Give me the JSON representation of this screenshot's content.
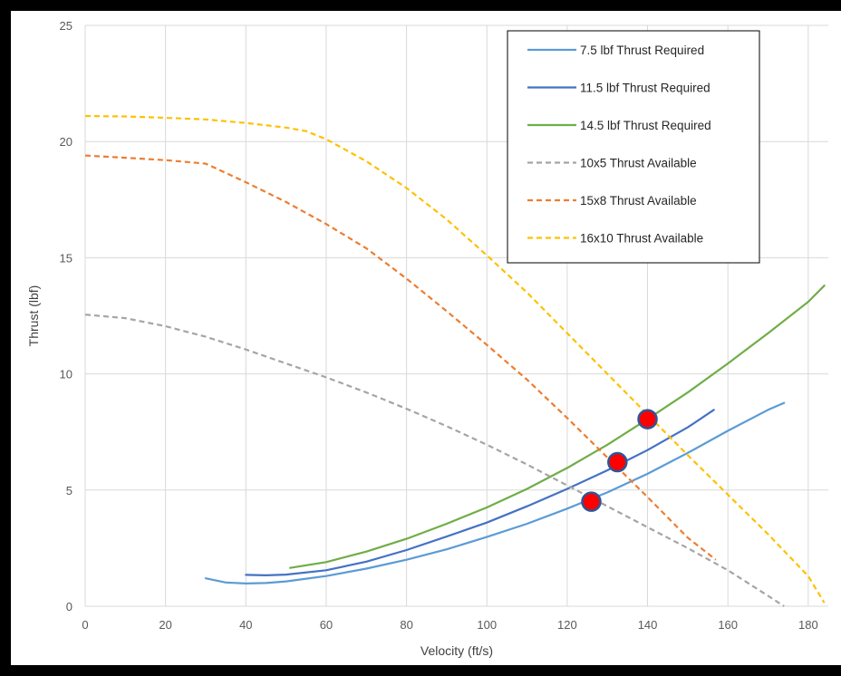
{
  "chart_data": {
    "type": "line",
    "title": "",
    "xlabel": "Velocity (ft/s)",
    "ylabel": "Thrust (lbf)",
    "xlim": [
      0,
      185
    ],
    "ylim": [
      0,
      25
    ],
    "xticks": [
      0,
      20,
      40,
      60,
      80,
      100,
      120,
      140,
      160,
      180
    ],
    "yticks": [
      0,
      5,
      10,
      15,
      20,
      25
    ],
    "grid": true,
    "legend_position": "top-right",
    "series": [
      {
        "name": "7.5 lbf Thrust Required",
        "color": "#5B9BD5",
        "dash": "solid",
        "points": [
          [
            30,
            1.2
          ],
          [
            35,
            1.02
          ],
          [
            40,
            0.98
          ],
          [
            45,
            1.0
          ],
          [
            50,
            1.07
          ],
          [
            60,
            1.3
          ],
          [
            70,
            1.62
          ],
          [
            80,
            2.0
          ],
          [
            90,
            2.45
          ],
          [
            100,
            2.98
          ],
          [
            110,
            3.55
          ],
          [
            120,
            4.2
          ],
          [
            130,
            4.9
          ],
          [
            140,
            5.7
          ],
          [
            150,
            6.6
          ],
          [
            160,
            7.55
          ],
          [
            170,
            8.45
          ],
          [
            174,
            8.75
          ]
        ]
      },
      {
        "name": "11.5 lbf Thrust Required",
        "color": "#4472C4",
        "dash": "solid",
        "points": [
          [
            40,
            1.35
          ],
          [
            45,
            1.33
          ],
          [
            50,
            1.36
          ],
          [
            60,
            1.55
          ],
          [
            70,
            1.92
          ],
          [
            80,
            2.42
          ],
          [
            90,
            3.0
          ],
          [
            100,
            3.6
          ],
          [
            110,
            4.3
          ],
          [
            120,
            5.05
          ],
          [
            130,
            5.85
          ],
          [
            140,
            6.72
          ],
          [
            150,
            7.7
          ],
          [
            156.5,
            8.45
          ]
        ]
      },
      {
        "name": "14.5 lbf Thrust Required",
        "color": "#70AD47",
        "dash": "solid",
        "points": [
          [
            51,
            1.65
          ],
          [
            60,
            1.9
          ],
          [
            70,
            2.35
          ],
          [
            80,
            2.9
          ],
          [
            90,
            3.55
          ],
          [
            100,
            4.25
          ],
          [
            110,
            5.05
          ],
          [
            120,
            5.95
          ],
          [
            130,
            6.95
          ],
          [
            140,
            8.05
          ],
          [
            150,
            9.2
          ],
          [
            160,
            10.45
          ],
          [
            170,
            11.75
          ],
          [
            180,
            13.1
          ],
          [
            184,
            13.8
          ]
        ]
      },
      {
        "name": "10x5 Thrust Available",
        "color": "#A5A5A5",
        "dash": "dashed",
        "points": [
          [
            0,
            12.55
          ],
          [
            10,
            12.4
          ],
          [
            20,
            12.05
          ],
          [
            30,
            11.6
          ],
          [
            40,
            11.05
          ],
          [
            50,
            10.45
          ],
          [
            60,
            9.85
          ],
          [
            70,
            9.2
          ],
          [
            80,
            8.5
          ],
          [
            90,
            7.75
          ],
          [
            100,
            6.95
          ],
          [
            110,
            6.1
          ],
          [
            120,
            5.2
          ],
          [
            130,
            4.3
          ],
          [
            140,
            3.4
          ],
          [
            150,
            2.5
          ],
          [
            160,
            1.55
          ],
          [
            170,
            0.45
          ],
          [
            174,
            0.0
          ]
        ]
      },
      {
        "name": "15x8 Thrust Available",
        "color": "#ED7D31",
        "dash": "dashed",
        "points": [
          [
            0,
            19.4
          ],
          [
            10,
            19.3
          ],
          [
            20,
            19.2
          ],
          [
            30,
            19.05
          ],
          [
            40,
            18.25
          ],
          [
            50,
            17.4
          ],
          [
            60,
            16.45
          ],
          [
            70,
            15.4
          ],
          [
            80,
            14.1
          ],
          [
            90,
            12.7
          ],
          [
            100,
            11.25
          ],
          [
            110,
            9.75
          ],
          [
            120,
            8.1
          ],
          [
            130,
            6.4
          ],
          [
            140,
            4.7
          ],
          [
            150,
            2.95
          ],
          [
            157,
            2.0
          ]
        ]
      },
      {
        "name": "16x10 Thrust Available",
        "color": "#FFC000",
        "dash": "dashed",
        "points": [
          [
            0,
            21.1
          ],
          [
            10,
            21.08
          ],
          [
            20,
            21.02
          ],
          [
            30,
            20.95
          ],
          [
            40,
            20.8
          ],
          [
            50,
            20.6
          ],
          [
            55,
            20.45
          ],
          [
            60,
            20.1
          ],
          [
            70,
            19.15
          ],
          [
            80,
            18.0
          ],
          [
            90,
            16.65
          ],
          [
            100,
            15.1
          ],
          [
            110,
            13.5
          ],
          [
            120,
            11.75
          ],
          [
            130,
            10.0
          ],
          [
            140,
            8.25
          ],
          [
            150,
            6.5
          ],
          [
            160,
            4.8
          ],
          [
            170,
            3.1
          ],
          [
            180,
            1.3
          ],
          [
            184,
            0.15
          ]
        ]
      }
    ],
    "markers": [
      {
        "x": 126,
        "y": 4.5,
        "color": "#FF0000",
        "edge": "#2F5597"
      },
      {
        "x": 132.5,
        "y": 6.2,
        "color": "#FF0000",
        "edge": "#2F5597"
      },
      {
        "x": 140,
        "y": 8.05,
        "color": "#FF0000",
        "edge": "#2F5597"
      }
    ]
  }
}
